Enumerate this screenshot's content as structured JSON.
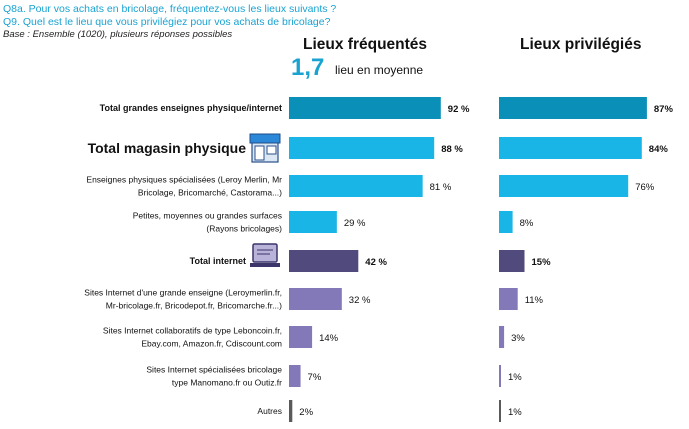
{
  "header": {
    "q1": "Q8a. Pour vos achats en bricolage, fréquentez-vous les lieux suivants ?",
    "q2": "Q9. Quel est le lieu que vous privilégiez pour vos achats de bricolage?",
    "base": "Base : Ensemble (1020), plusieurs réponses possibles"
  },
  "average": {
    "value": "1,7",
    "label": "lieu en moyenne"
  },
  "chart_data": {
    "type": "bar",
    "orientation": "horizontal",
    "categories": [
      [
        "Total grandes enseignes physique/internet"
      ],
      [
        "Total magasin physique"
      ],
      [
        "Enseignes physiques spécialisées (Leroy Merlin, Mr",
        "Bricolage, Bricomarché, Castorama...)"
      ],
      [
        "Petites, moyennes ou grandes surfaces",
        "(Rayons bricolages)"
      ],
      [
        "Total internet"
      ],
      [
        "Sites Internet d'une grande enseigne (Leroymerlin.fr,",
        "Mr-bricolage.fr, Bricodepot.fr, Bricomarche.fr...)"
      ],
      [
        "Sites Internet collaboratifs de type Leboncoin.fr,",
        "Ebay.com, Amazon.fr, Cdiscount.com"
      ],
      [
        "Sites Internet spécialisées bricolage",
        "type Manomano.fr ou Outiz.fr"
      ],
      [
        "Autres"
      ]
    ],
    "series": [
      {
        "name": "Lieux fréquentés",
        "values": [
          92,
          88,
          81,
          29,
          42,
          32,
          14,
          7,
          2
        ],
        "labels": [
          "92 %",
          "88 %",
          "81 %",
          "29 %",
          "42 %",
          "32 %",
          "14%",
          "7%",
          "2%"
        ]
      },
      {
        "name": "Lieux privilégiés",
        "values": [
          87,
          84,
          76,
          8,
          15,
          11,
          3,
          1,
          1
        ],
        "labels": [
          "87%",
          "84%",
          "76%",
          "8%",
          "15%",
          "11%",
          "3%",
          "1%",
          "1%"
        ]
      }
    ],
    "colors": [
      "#0a8fb8",
      "#19b5e6",
      "#19b5e6",
      "#19b5e6",
      "#514a7c",
      "#8378b8",
      "#8378b8",
      "#8378b8",
      "#5a5a5a"
    ],
    "bold_rows": [
      0,
      1,
      4
    ],
    "icons": {
      "1": "store-icon",
      "4": "laptop-icon"
    },
    "xlim": [
      0,
      100
    ]
  }
}
